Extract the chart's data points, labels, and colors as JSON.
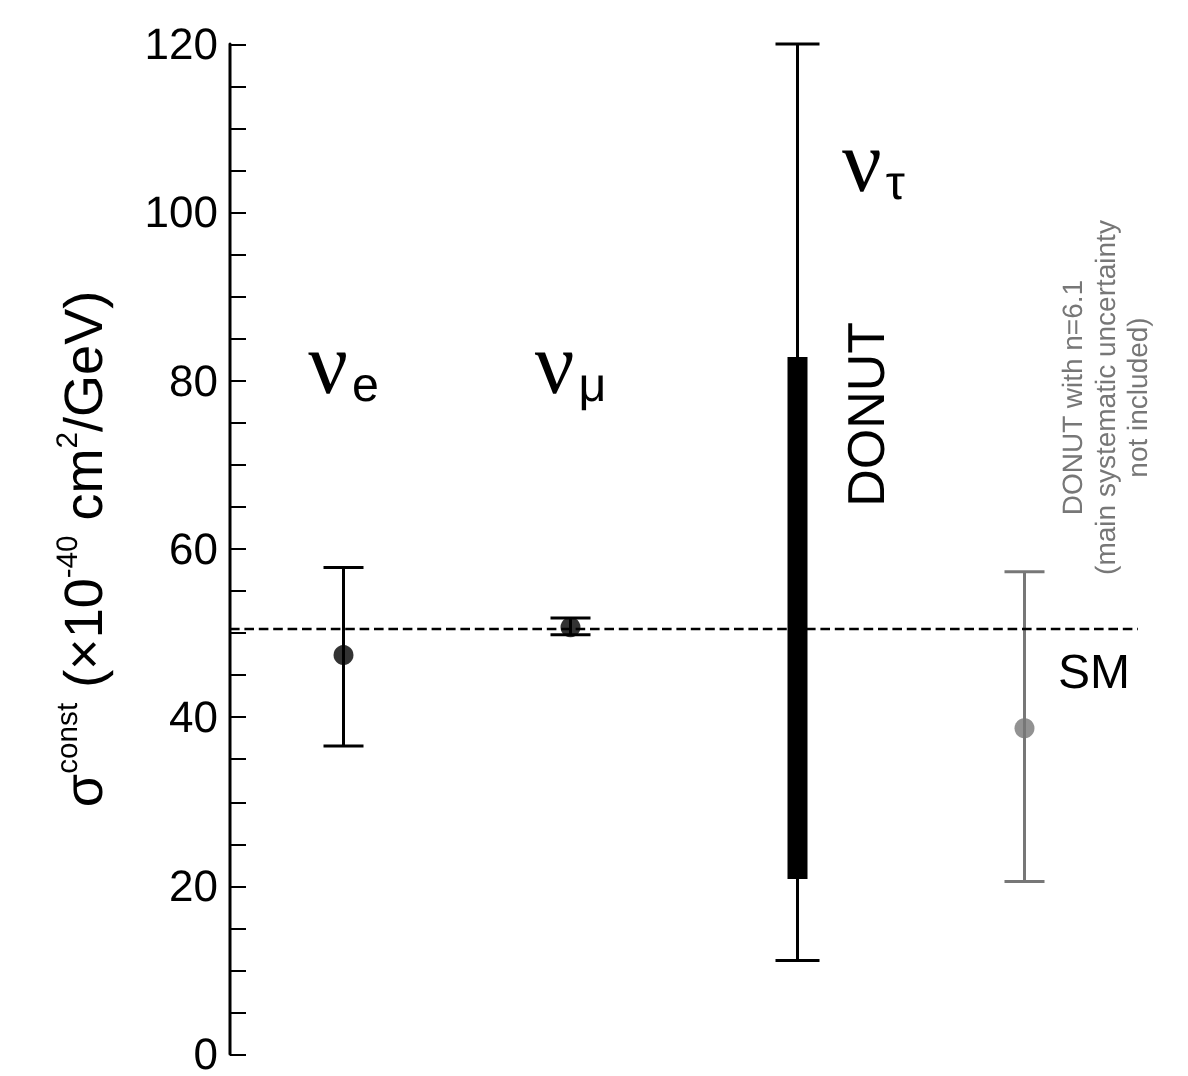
{
  "chart_data": {
    "type": "scatter",
    "ylabel": "σ$^{const}$ (×10$^{-40}$ cm$^{2}$/GeV)",
    "categories": [
      null,
      null,
      null,
      null
    ],
    "series": [
      {
        "color": "#000000",
        "values": [
          47.4,
          50.7,
          null,
          null
        ],
        "errors": [
          [
            36.6,
            57.8
          ],
          [
            49.8,
            51.8
          ],
          null,
          null
        ]
      },
      {
        "type": "bar",
        "color": "#000000",
        "base": [
          null,
          null,
          20.8,
          null
        ],
        "values": [
          null,
          null,
          62,
          null
        ],
        "errors": [
          null,
          null,
          [
            11.1,
            120
          ],
          null
        ]
      },
      {
        "color": "#777777",
        "values": [
          null,
          null,
          null,
          38.7
        ],
        "errors": [
          null,
          null,
          null,
          [
            20.5,
            57.3
          ]
        ]
      }
    ],
    "ylim": [
      0,
      120
    ],
    "yticks": [
      0,
      {
        "value": 5,
        "label": null
      },
      {
        "value": 10,
        "label": null
      },
      {
        "value": 15,
        "label": null
      },
      20,
      {
        "value": 25,
        "label": null
      },
      {
        "value": 30,
        "label": null
      },
      {
        "value": 35,
        "label": null
      },
      40,
      {
        "value": 45,
        "label": null
      },
      {
        "value": 50,
        "label": null
      },
      {
        "value": 55,
        "label": null
      },
      60,
      {
        "value": 65,
        "label": null
      },
      {
        "value": 70,
        "label": null
      },
      {
        "value": 75,
        "label": null
      },
      80,
      {
        "value": 85,
        "label": null
      },
      {
        "value": 90,
        "label": null
      },
      {
        "value": 95,
        "label": null
      },
      100,
      {
        "value": 105,
        "label": null
      },
      {
        "value": 110,
        "label": null
      },
      {
        "value": 115,
        "label": null
      },
      120
    ],
    "ref_lines": [
      {
        "axis": "y",
        "value": 50.5,
        "label": "SM",
        "line_style": "dashed",
        "color": "#000000"
      }
    ],
    "annotations": [
      "ν$_{e}$",
      "ν$_{μ}$",
      "ν$_{τ}$",
      "DONUT",
      "DONUT with n=6.1\n(main systematic uncertainty\nnot included)"
    ],
    "tick_labels": "y",
    "grid": false,
    "marker": "circle"
  }
}
